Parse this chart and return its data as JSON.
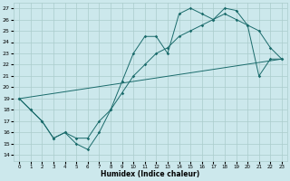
{
  "xlabel": "Humidex (Indice chaleur)",
  "xlim": [
    -0.5,
    23.5
  ],
  "ylim": [
    13.5,
    27.5
  ],
  "yticks": [
    14,
    15,
    16,
    17,
    18,
    19,
    20,
    21,
    22,
    23,
    24,
    25,
    26,
    27
  ],
  "xticks": [
    0,
    1,
    2,
    3,
    4,
    5,
    6,
    7,
    8,
    9,
    10,
    11,
    12,
    13,
    14,
    15,
    16,
    17,
    18,
    19,
    20,
    21,
    22,
    23
  ],
  "bg_color": "#cce8ec",
  "grid_color": "#aacccc",
  "line_color": "#1a6b6b",
  "line1_x": [
    0,
    1,
    2,
    3,
    4,
    5,
    6,
    7,
    8,
    9,
    10,
    11,
    12,
    13,
    14,
    15,
    16,
    17,
    18,
    19,
    20,
    21,
    22,
    23
  ],
  "line1_y": [
    19,
    18,
    17,
    15.5,
    16,
    15,
    14.5,
    16,
    18,
    20.5,
    23,
    24.5,
    24.5,
    23,
    26.5,
    27,
    26.5,
    26,
    27,
    26.8,
    25.5,
    25,
    23.5,
    22.5
  ],
  "line2_x": [
    0,
    1,
    2,
    3,
    4,
    5,
    6,
    7,
    8,
    9,
    10,
    11,
    12,
    13,
    14,
    15,
    16,
    17,
    18,
    19,
    20,
    21,
    22,
    23
  ],
  "line2_y": [
    19,
    18,
    17,
    15.5,
    16,
    15.5,
    15.5,
    17,
    18,
    19.5,
    21,
    22,
    23,
    23.5,
    24.5,
    25,
    25.5,
    26,
    26.5,
    26,
    25.5,
    21,
    22.5,
    22.5
  ],
  "line3_x": [
    0,
    23
  ],
  "line3_y": [
    19,
    22.5
  ]
}
